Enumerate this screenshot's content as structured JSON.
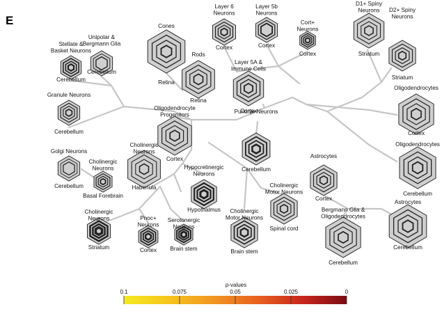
{
  "panel_label": "E",
  "legend": {
    "title": "p-values",
    "ticks": [
      "0.1",
      "0.075",
      "0.05",
      "0.025",
      "0"
    ],
    "gradient": [
      "#f4ea21",
      "#f6c51d",
      "#f29522",
      "#e8621f",
      "#c9261e",
      "#7a0c12"
    ]
  },
  "nodes": [
    {
      "title": [
        "Stellate &",
        "Basket Neurons"
      ],
      "region": "Cerebellum",
      "rings": 3
    },
    {
      "title": [
        "Unipolar &",
        "Bergmann Glia"
      ],
      "region": "Cerebellum",
      "rings": 2
    },
    {
      "title": [
        "Cones"
      ],
      "region": "Retina",
      "rings": 3
    },
    {
      "title": [
        "Rods"
      ],
      "region": "Retina",
      "rings": 3
    },
    {
      "title": [
        "Layer 6",
        "Neurons"
      ],
      "region": "Cortex",
      "rings": 3
    },
    {
      "title": [
        "Layer 5b",
        "Neurons"
      ],
      "region": "Cortex",
      "rings": 2
    },
    {
      "title": [
        "Cort+",
        "Neurons"
      ],
      "region": "Cortex",
      "rings": 3
    },
    {
      "title": [
        "D1+ Spiny",
        "Neurons"
      ],
      "region": "Striatum",
      "rings": 3
    },
    {
      "title": [
        "D2+ Spiny",
        "Neurons"
      ],
      "region": "Striatum",
      "rings": 3
    },
    {
      "title": [
        "Layer 5A &",
        "Immune Cells"
      ],
      "region": "Cortex",
      "rings": 3
    },
    {
      "title": [
        "Granule Neurons"
      ],
      "region": "Cerebellum",
      "rings": 3
    },
    {
      "title": [
        "Oligodendrocyte",
        "Progenitors"
      ],
      "region": "Cortex",
      "rings": 3
    },
    {
      "title": [
        "Oligodendrocytes"
      ],
      "region": "Cortex",
      "rings": 3
    },
    {
      "title": [
        "Golgi Neurons"
      ],
      "region": "Cerebellum",
      "rings": 2
    },
    {
      "title": [
        "Cholinergic",
        "Neurons"
      ],
      "region": "Habenula",
      "rings": 3
    },
    {
      "title": [
        "Purkinje Neurons"
      ],
      "region": "Cerebellum",
      "rings": 3
    },
    {
      "title": [
        "Oligodendrocytes"
      ],
      "region": "Cerebellum",
      "rings": 3
    },
    {
      "title": [
        "Cholinergic",
        "Neurons"
      ],
      "region": "Basal Forebrain",
      "rings": 3
    },
    {
      "title": [
        "Hypocretinergic",
        "Neurons"
      ],
      "region": "Hypothalmus",
      "rings": 3
    },
    {
      "title": [
        "Astrocytes"
      ],
      "region": "Cortex",
      "rings": 3
    },
    {
      "title": [
        "Cholinergic",
        "Motor Neurons"
      ],
      "region": "Spinal cord",
      "rings": 3
    },
    {
      "title": [
        "Cholinergic",
        "Neurons"
      ],
      "region": "Striatum",
      "rings": 3
    },
    {
      "title": [
        "Pnoc+",
        "Neurons"
      ],
      "region": "Cortex",
      "rings": 3
    },
    {
      "title": [
        "Serotonergic",
        "Neurons"
      ],
      "region": "Brain stem",
      "rings": 3
    },
    {
      "title": [
        "Cholinergic",
        "Motor Neurons"
      ],
      "region": "Brain stem",
      "rings": 3
    },
    {
      "title": [
        "Bergmann Glia &",
        "Oligodendrocytes"
      ],
      "region": "Cerebellum",
      "rings": 3
    },
    {
      "title": [
        "Astrocytes"
      ],
      "region": "Cerebellum",
      "rings": 3
    }
  ]
}
